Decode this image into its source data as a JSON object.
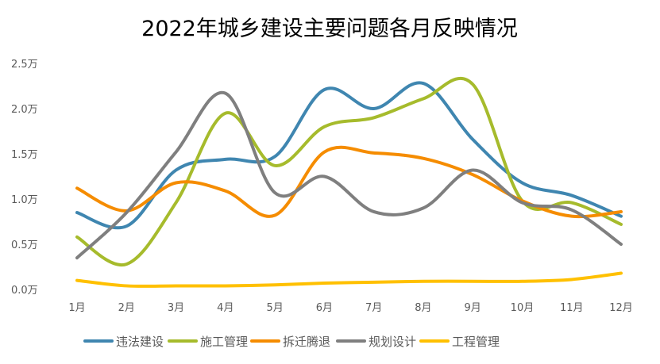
{
  "chart_data": {
    "type": "line",
    "title": "2022年城乡建设主要问题各月反映情况",
    "xlabel": "",
    "ylabel": "",
    "categories": [
      "1月",
      "2月",
      "3月",
      "4月",
      "5月",
      "6月",
      "7月",
      "8月",
      "9月",
      "10月",
      "11月",
      "12月"
    ],
    "y_ticks": [
      "0.0万",
      "0.5万",
      "1.0万",
      "1.5万",
      "2.0万",
      "2.5万"
    ],
    "ylim": [
      0,
      2.5
    ],
    "y_unit": "万",
    "grid": false,
    "smooth": true,
    "legend": "bottom",
    "series": [
      {
        "name": "违法建设",
        "color": "#3f86b0",
        "values": [
          0.85,
          0.7,
          1.32,
          1.44,
          1.47,
          2.21,
          2.0,
          2.28,
          1.66,
          1.18,
          1.04,
          0.81
        ]
      },
      {
        "name": "施工管理",
        "color": "#a6bb2c",
        "values": [
          0.58,
          0.28,
          0.96,
          1.95,
          1.37,
          1.8,
          1.9,
          2.11,
          2.27,
          0.98,
          0.96,
          0.72
        ]
      },
      {
        "name": "拆迁腾退",
        "color": "#f58c00",
        "values": [
          1.12,
          0.87,
          1.18,
          1.09,
          0.82,
          1.52,
          1.51,
          1.45,
          1.27,
          0.98,
          0.81,
          0.86
        ]
      },
      {
        "name": "规划设计",
        "color": "#7f7f7f",
        "values": [
          0.35,
          0.85,
          1.52,
          2.17,
          1.07,
          1.25,
          0.86,
          0.9,
          1.32,
          0.96,
          0.88,
          0.5
        ]
      },
      {
        "name": "工程管理",
        "color": "#ffc000",
        "values": [
          0.1,
          0.04,
          0.04,
          0.04,
          0.05,
          0.07,
          0.08,
          0.09,
          0.09,
          0.09,
          0.11,
          0.18
        ]
      }
    ]
  }
}
